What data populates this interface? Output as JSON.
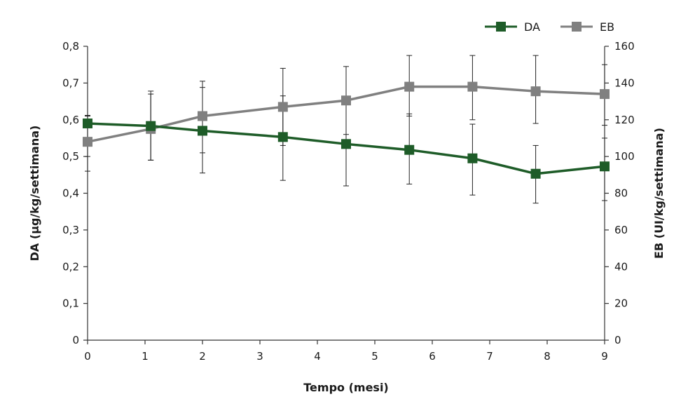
{
  "chart_data": {
    "type": "line",
    "title": "",
    "xlabel": "Tempo (mesi)",
    "ylabel_left": "DA (µg/kg/settimana)",
    "ylabel_right": "EB (UI/kg/settimana)",
    "x_ticks": [
      "0",
      "1",
      "2",
      "3",
      "4",
      "5",
      "6",
      "7",
      "8",
      "9"
    ],
    "xlim": [
      0,
      9
    ],
    "y_left_ticks": [
      "0",
      "0,1",
      "0,2",
      "0,3",
      "0,4",
      "0,5",
      "0,6",
      "0,7",
      "0,8"
    ],
    "y_left_lim": [
      0,
      0.8
    ],
    "y_right_ticks": [
      "0",
      "20",
      "40",
      "60",
      "80",
      "100",
      "120",
      "140",
      "160"
    ],
    "y_right_lim": [
      0,
      160
    ],
    "legend_position": "top-right",
    "series": [
      {
        "name": "DA",
        "axis": "left",
        "color": "#1e5c28",
        "x": [
          0,
          1.1,
          2.0,
          3.4,
          4.5,
          5.6,
          6.7,
          7.8,
          9.0
        ],
        "values": [
          0.59,
          0.583,
          0.57,
          0.553,
          0.534,
          0.518,
          0.495,
          0.453,
          0.473
        ],
        "error_low": [
          0.5,
          0.49,
          0.455,
          0.435,
          0.42,
          0.425,
          0.395,
          0.373,
          0.38
        ],
        "error_high": [
          0.612,
          0.678,
          0.688,
          0.665,
          0.65,
          0.616,
          0.588,
          0.53,
          0.55
        ]
      },
      {
        "name": "EB",
        "axis": "right",
        "color": "#808080",
        "x": [
          0,
          1.1,
          2.0,
          3.4,
          4.5,
          5.6,
          6.7,
          7.8,
          9.0
        ],
        "values": [
          108,
          115,
          122,
          127,
          130.5,
          138,
          138,
          135.5,
          134
        ],
        "error_low": [
          92,
          98,
          102,
          106,
          112,
          122,
          120,
          118,
          117
        ],
        "error_high": [
          122,
          134,
          141,
          148,
          149,
          155,
          155,
          155,
          150
        ]
      }
    ]
  }
}
